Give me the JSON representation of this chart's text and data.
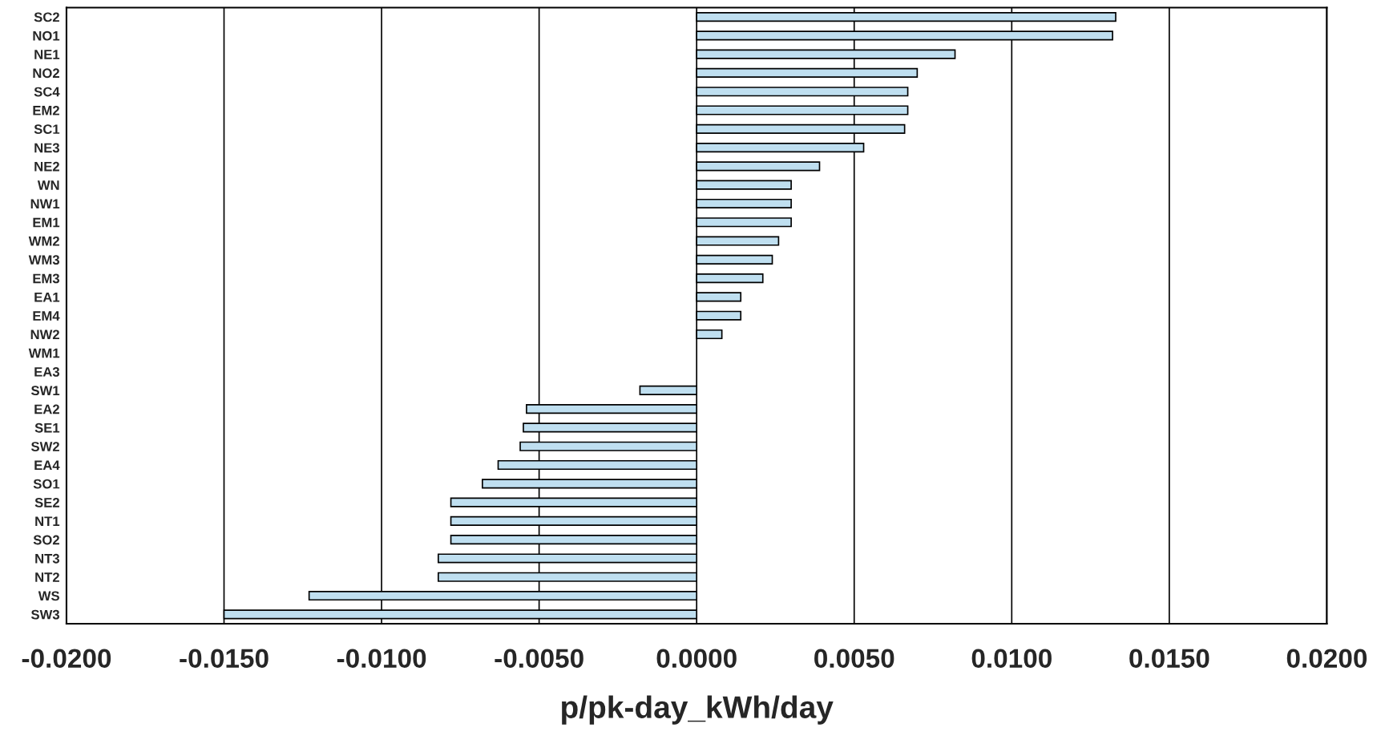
{
  "chart_data": {
    "type": "bar",
    "orientation": "horizontal",
    "xlabel": "p/pk-day_kWh/day",
    "categories": [
      "SC2",
      "NO1",
      "NE1",
      "NO2",
      "SC4",
      "EM2",
      "SC1",
      "NE3",
      "NE2",
      "WN",
      "NW1",
      "EM1",
      "WM2",
      "WM3",
      "EM3",
      "EA1",
      "EM4",
      "NW2",
      "WM1",
      "EA3",
      "SW1",
      "EA2",
      "SE1",
      "SW2",
      "EA4",
      "SO1",
      "SE2",
      "NT1",
      "SO2",
      "NT3",
      "NT2",
      "WS",
      "SW3"
    ],
    "values": [
      0.0133,
      0.0132,
      0.0082,
      0.007,
      0.0067,
      0.0067,
      0.0066,
      0.0053,
      0.0039,
      0.003,
      0.003,
      0.003,
      0.0026,
      0.0024,
      0.0021,
      0.0014,
      0.0014,
      0.0008,
      0,
      0,
      -0.0018,
      -0.0054,
      -0.0055,
      -0.0056,
      -0.0063,
      -0.0068,
      -0.0078,
      -0.0078,
      -0.0078,
      -0.0082,
      -0.0082,
      -0.0123,
      -0.015
    ],
    "color": "#bfdff0",
    "xlim": [
      -0.02,
      0.02
    ],
    "xticks": [
      {
        "value": -0.02,
        "label": "-0.0200"
      },
      {
        "value": -0.015,
        "label": "-0.0150"
      },
      {
        "value": -0.01,
        "label": "-0.0100"
      },
      {
        "value": -0.005,
        "label": "-0.0050"
      },
      {
        "value": 0,
        "label": "0.0000"
      },
      {
        "value": 0.005,
        "label": "0.0050"
      },
      {
        "value": 0.01,
        "label": "0.0100"
      },
      {
        "value": 0.015,
        "label": "0.0150"
      },
      {
        "value": 0.02,
        "label": "0.0200"
      }
    ],
    "grid": "x",
    "legend": false
  }
}
